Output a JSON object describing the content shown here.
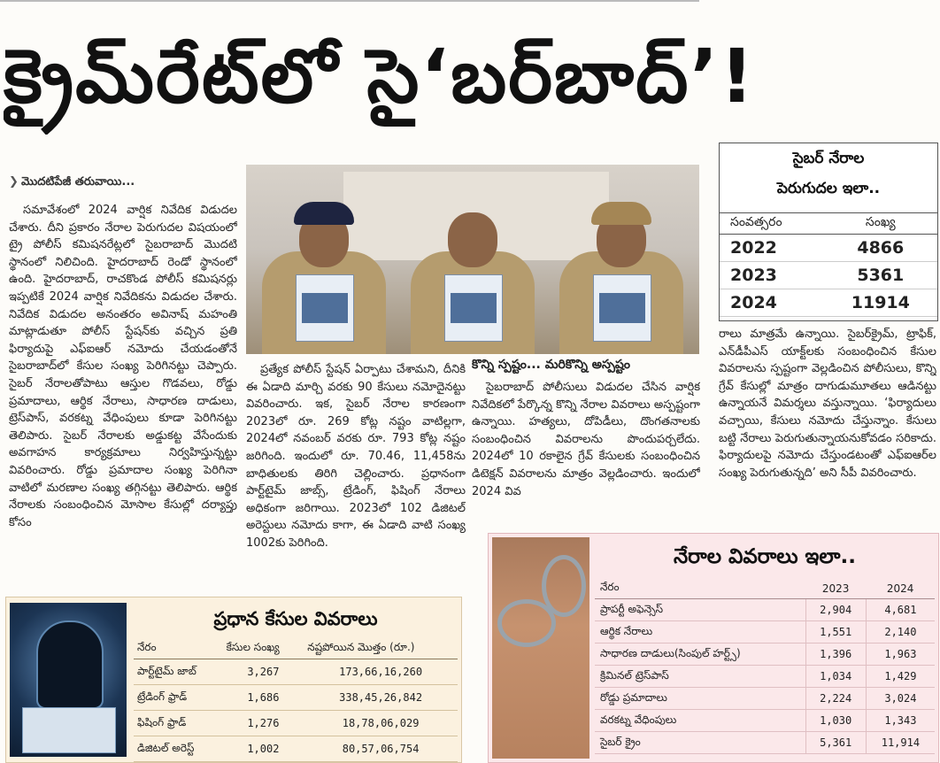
{
  "headline": "క్రైమ్‌రేట్‌లో సై‘బర్‌బాద్‌’!",
  "continuation": "మొదటిపేజీ తరువాయి...",
  "subhead": "కొన్ని స్పష్టం... మరికొన్ని అస్పష్టం",
  "col1": {
    "paragraphs": [
      "సమావేశంలో 2024 వార్షిక నివేదిక విడుదల చేశారు. దీని ప్రకారం నేరాల పెరుగుదల విషయంలో ట్రై పోలీస్ కమిషనరేట్లలో సైబరాబాద్ మొదటి స్థానంలో నిలిచింది. హైదరాబాద్ రెండో స్థానంలో ఉంది. హైదరాబాద్, రాచకొండ పోలీస్ కమిషనర్లు ఇప్పటికే 2024 వార్షిక నివేదికను విడుదల చేశారు. నివేదిక విడుదల అనంతరం అవినాష్ మహంతి మాట్లాడుతూ పోలీస్ స్టేషన్‌కు వచ్చిన ప్రతి ఫిర్యాదుపై ఎఫ్‌ఐఆర్ నమోదు చేయడంతోనే సైబరాబాద్‌లో కేసుల సంఖ్య పెరిగినట్టు చెప్పారు. సైబర్ నేరాలతోపాటు ఆస్తుల గొడవలు, రోడ్డు ప్రమాదాలు, ఆర్థిక నేరాలు, సాధారణ దాడులు, ట్రెస్‌పాస్, వరకట్న వేధింపులు కూడా పెరిగినట్టు తెలిపారు. సైబర్ నేరాలకు అడ్డుకట్ట వేసేందుకు అవగాహన కార్యక్రమాలు నిర్వహిస్తున్నట్టు వివరించారు. రోడ్డు ప్రమాదాల సంఖ్య పెరిగినా వాటిలో మరణాల సంఖ్య తగ్గినట్టు తెలిపారు. ఆర్థిక నేరాలకు సంబంధించిన మోసాల కేసుల్లో దర్యాప్తు కోసం"
    ]
  },
  "col2": {
    "paragraphs": [
      "ప్రత్యేక పోలీస్ స్టేషన్ ఏర్పాటు చేశామని, దీనికి ఈ ఏడాది మార్చి వరకు 90 కేసులు నమోదైనట్టు వివరించారు. ఇక, సైబర్ నేరాల కారణంగా 2023లో రూ. 269 కోట్ల నష్టం వాటిల్లగా, 2024లో నవంబర్ వరకు రూ. 793 కోట్ల నష్టం జరిగింది. ఇందులో రూ. 70.46, 11,458ను బాధితులకు తిరిగి చెల్లించారు. ప్రధానంగా పార్ట్‌టైమ్ జాబ్స్, ట్రేడింగ్, ఫిషింగ్ నేరాలు అధికంగా జరిగాయి. 2023లో 102 డిజిటల్ అరెస్టులు నమోదు కాగా, ఈ ఏడాది వాటి సంఖ్య 1002కు పెరిగింది."
    ]
  },
  "col3": {
    "paragraphs": [
      "సైబరాబాద్ పోలీసులు విడుదల చేసిన వార్షిక నివేదికలో పేర్కొన్న కొన్ని నేరాల వివరాలు అస్పష్టంగా ఉన్నాయి. హత్యలు, దోపిడీలు, దొంగతనాలకు సంబంధించిన వివరాలను పొందుపర్చలేదు. 2024లో 10 రకాలైన గ్రేవ్ కేసులకు సంబంధించిన డిటెక్షన్ వివరాలను మాత్రం వెల్లడించారు. ఇందులో 2024 వివ"
    ]
  },
  "col4": {
    "paragraphs": [
      "రాలు మాత్రమే ఉన్నాయి. సైబర్‌క్రైమ్, ట్రాఫిక్, ఎన్‌డీపీఎస్ యాక్ట్‌లకు సంబంధించిన కేసుల వివరాలను స్పష్టంగా వెల్లడించిన పోలీసులు, కొన్ని గ్రేవ్ కేసుల్లో మాత్రం దాగుడుమూతలు ఆడినట్టు ఉన్నాయనే విమర్శలు వస్తున్నాయి. ‘ఫిర్యాదులు వచ్చాయి, కేసులు నమోదు చేస్తున్నాం. కేసులు బట్టి నేరాలు పెరుగుతున్నాయనుకోవడం సరికాదు. ఫిర్యాదులపై నమోదు చేస్తుండటంతో ఎఫ్ఐఆర్‌ల సంఖ్య పెరుగుతున్నది’ అని సీపీ వివరించారు."
    ]
  },
  "cyber_box": {
    "title_line1": "సైబర్ నేరాల",
    "title_line2": "పెరుగుదల ఇలా..",
    "headers": [
      "సంవత్సరం",
      "సంఖ్య"
    ],
    "rows": [
      {
        "year": "2022",
        "count": "4866"
      },
      {
        "year": "2023",
        "count": "5361"
      },
      {
        "year": "2024",
        "count": "11914"
      }
    ]
  },
  "cases_box": {
    "title": "ప్రధాన కేసుల వివరాలు",
    "headers": [
      "నేరం",
      "కేసుల సంఖ్య",
      "నష్టపోయిన మొత్తం (రూ.)"
    ],
    "rows": [
      {
        "crime": "పార్ట్‌టైమ్ జాబ్",
        "cases": "3,267",
        "amount": "173,66,16,260"
      },
      {
        "crime": "ట్రేడింగ్ ఫ్రాడ్",
        "cases": "1,686",
        "amount": "338,45,26,842"
      },
      {
        "crime": "ఫిషింగ్ ఫ్రాడ్",
        "cases": "1,276",
        "amount": "18,78,06,029"
      },
      {
        "crime": "డిజిటల్ అరెస్ట్",
        "cases": "1,002",
        "amount": "80,57,06,754"
      }
    ]
  },
  "crime_box": {
    "title": "నేరాల వివరాలు ఇలా..",
    "headers": [
      "నేరం",
      "2023",
      "2024"
    ],
    "rows": [
      {
        "crime": "ప్రాపర్టీ అఫెన్సెస్",
        "y2023": "2,904",
        "y2024": "4,681"
      },
      {
        "crime": "ఆర్థిక నేరాలు",
        "y2023": "1,551",
        "y2024": "2,140"
      },
      {
        "crime": "సాధారణ దాడులు(సింపుల్ హర్ట్స్)",
        "y2023": "1,396",
        "y2024": "1,963"
      },
      {
        "crime": "క్రిమినల్ ట్రెస్‌పాస్",
        "y2023": "1,034",
        "y2024": "1,429"
      },
      {
        "crime": "రోడ్డు ప్రమాదాలు",
        "y2023": "2,224",
        "y2024": "3,024"
      },
      {
        "crime": "వరకట్న వేధింపులు",
        "y2023": "1,030",
        "y2024": "1,343"
      },
      {
        "crime": "సైబర్ క్రైం",
        "y2023": "5,361",
        "y2024": "11,914"
      }
    ]
  }
}
